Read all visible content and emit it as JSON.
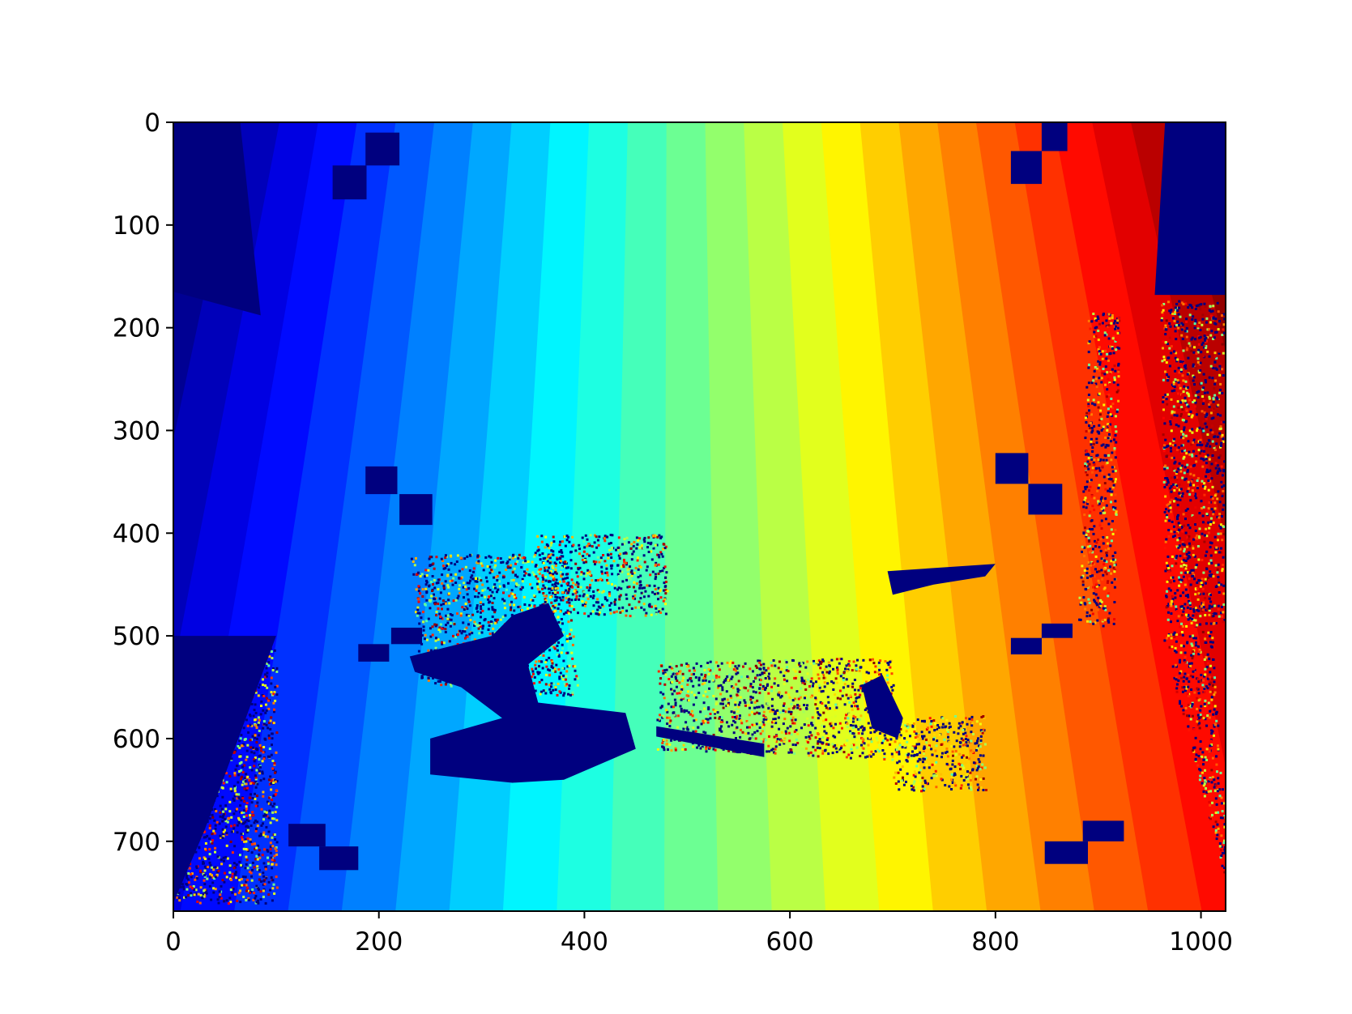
{
  "chart_data": {
    "type": "heatmap",
    "title": "",
    "xlabel": "",
    "ylabel": "",
    "colormap": "jet",
    "image_width": 1024,
    "image_height": 768,
    "xlim": [
      0,
      1024
    ],
    "ylim": [
      768,
      0
    ],
    "y_axis_inverted": true,
    "grid": false,
    "legend": "none",
    "x_ticks": [
      0,
      200,
      400,
      600,
      800,
      1000
    ],
    "x_tick_labels": [
      "0",
      "200",
      "400",
      "600",
      "800",
      "1000"
    ],
    "y_ticks": [
      0,
      100,
      200,
      300,
      400,
      500,
      600,
      700
    ],
    "y_tick_labels": [
      "0",
      "100",
      "200",
      "300",
      "400",
      "500",
      "600",
      "700"
    ],
    "field": {
      "description": "banded gradient increasing left to right",
      "num_bands": 26
    },
    "invalid_regions": [
      {
        "kind": "polygon",
        "points": [
          [
            0,
            0
          ],
          [
            65,
            0
          ],
          [
            85,
            188
          ],
          [
            0,
            165
          ]
        ]
      },
      {
        "kind": "polygon",
        "points": [
          [
            965,
            0
          ],
          [
            1024,
            0
          ],
          [
            1024,
            168
          ],
          [
            955,
            168
          ]
        ]
      },
      {
        "kind": "rect",
        "x": [
          187,
          220
        ],
        "y": [
          10,
          42
        ]
      },
      {
        "kind": "rect",
        "x": [
          155,
          188
        ],
        "y": [
          42,
          75
        ]
      },
      {
        "kind": "rect",
        "x": [
          845,
          870
        ],
        "y": [
          0,
          28
        ]
      },
      {
        "kind": "rect",
        "x": [
          815,
          845
        ],
        "y": [
          28,
          60
        ]
      },
      {
        "kind": "rect",
        "x": [
          187,
          218
        ],
        "y": [
          335,
          362
        ]
      },
      {
        "kind": "rect",
        "x": [
          220,
          252
        ],
        "y": [
          362,
          392
        ]
      },
      {
        "kind": "rect",
        "x": [
          800,
          832
        ],
        "y": [
          322,
          352
        ]
      },
      {
        "kind": "rect",
        "x": [
          832,
          865
        ],
        "y": [
          352,
          382
        ]
      },
      {
        "kind": "rect",
        "x": [
          180,
          210
        ],
        "y": [
          508,
          525
        ]
      },
      {
        "kind": "rect",
        "x": [
          212,
          242
        ],
        "y": [
          492,
          508
        ]
      },
      {
        "kind": "rect",
        "x": [
          815,
          845
        ],
        "y": [
          502,
          518
        ]
      },
      {
        "kind": "rect",
        "x": [
          845,
          875
        ],
        "y": [
          488,
          502
        ]
      },
      {
        "kind": "rect",
        "x": [
          112,
          148
        ],
        "y": [
          683,
          705
        ]
      },
      {
        "kind": "rect",
        "x": [
          142,
          180
        ],
        "y": [
          705,
          728
        ]
      },
      {
        "kind": "rect",
        "x": [
          885,
          925
        ],
        "y": [
          680,
          700
        ]
      },
      {
        "kind": "rect",
        "x": [
          848,
          890
        ],
        "y": [
          700,
          722
        ]
      },
      {
        "kind": "polygon",
        "points": [
          [
            0,
            500
          ],
          [
            100,
            500
          ],
          [
            30,
            690
          ],
          [
            0,
            760
          ]
        ]
      },
      {
        "kind": "polygon",
        "points": [
          [
            330,
            480
          ],
          [
            365,
            468
          ],
          [
            380,
            500
          ],
          [
            345,
            528
          ],
          [
            355,
            565
          ],
          [
            440,
            575
          ],
          [
            450,
            610
          ],
          [
            380,
            640
          ],
          [
            330,
            643
          ],
          [
            250,
            635
          ],
          [
            250,
            600
          ],
          [
            320,
            580
          ],
          [
            280,
            550
          ],
          [
            235,
            535
          ],
          [
            230,
            520
          ],
          [
            270,
            510
          ],
          [
            310,
            500
          ]
        ]
      },
      {
        "kind": "polygon",
        "points": [
          [
            670,
            548
          ],
          [
            690,
            538
          ],
          [
            710,
            580
          ],
          [
            705,
            600
          ],
          [
            680,
            590
          ]
        ]
      },
      {
        "kind": "polygon",
        "points": [
          [
            470,
            588
          ],
          [
            575,
            605
          ],
          [
            575,
            618
          ],
          [
            470,
            598
          ]
        ]
      },
      {
        "kind": "polygon",
        "points": [
          [
            695,
            437
          ],
          [
            800,
            430
          ],
          [
            790,
            442
          ],
          [
            740,
            450
          ],
          [
            700,
            460
          ]
        ]
      }
    ],
    "noisy_regions": [
      {
        "kind": "rect",
        "x": [
          0,
          100
        ],
        "y": [
          505,
          760
        ]
      },
      {
        "kind": "polygon",
        "points": [
          [
            960,
            170
          ],
          [
            1022,
            175
          ],
          [
            1022,
            490
          ],
          [
            965,
            490
          ]
        ]
      },
      {
        "kind": "polygon",
        "points": [
          [
            890,
            185
          ],
          [
            920,
            185
          ],
          [
            915,
            490
          ],
          [
            880,
            490
          ]
        ]
      },
      {
        "kind": "polygon",
        "points": [
          [
            960,
            495
          ],
          [
            1010,
            495
          ],
          [
            1024,
            700
          ],
          [
            1024,
            740
          ]
        ]
      },
      {
        "kind": "polygon",
        "points": [
          [
            470,
            525
          ],
          [
            700,
            520
          ],
          [
            700,
            620
          ],
          [
            470,
            610
          ]
        ]
      },
      {
        "kind": "polygon",
        "points": [
          [
            350,
            400
          ],
          [
            480,
            400
          ],
          [
            480,
            480
          ],
          [
            350,
            480
          ]
        ]
      },
      {
        "kind": "polygon",
        "points": [
          [
            700,
            580
          ],
          [
            790,
            575
          ],
          [
            790,
            650
          ],
          [
            700,
            650
          ]
        ]
      },
      {
        "kind": "polygon",
        "points": [
          [
            230,
            420
          ],
          [
            380,
            420
          ],
          [
            395,
            560
          ],
          [
            240,
            545
          ]
        ]
      }
    ]
  }
}
